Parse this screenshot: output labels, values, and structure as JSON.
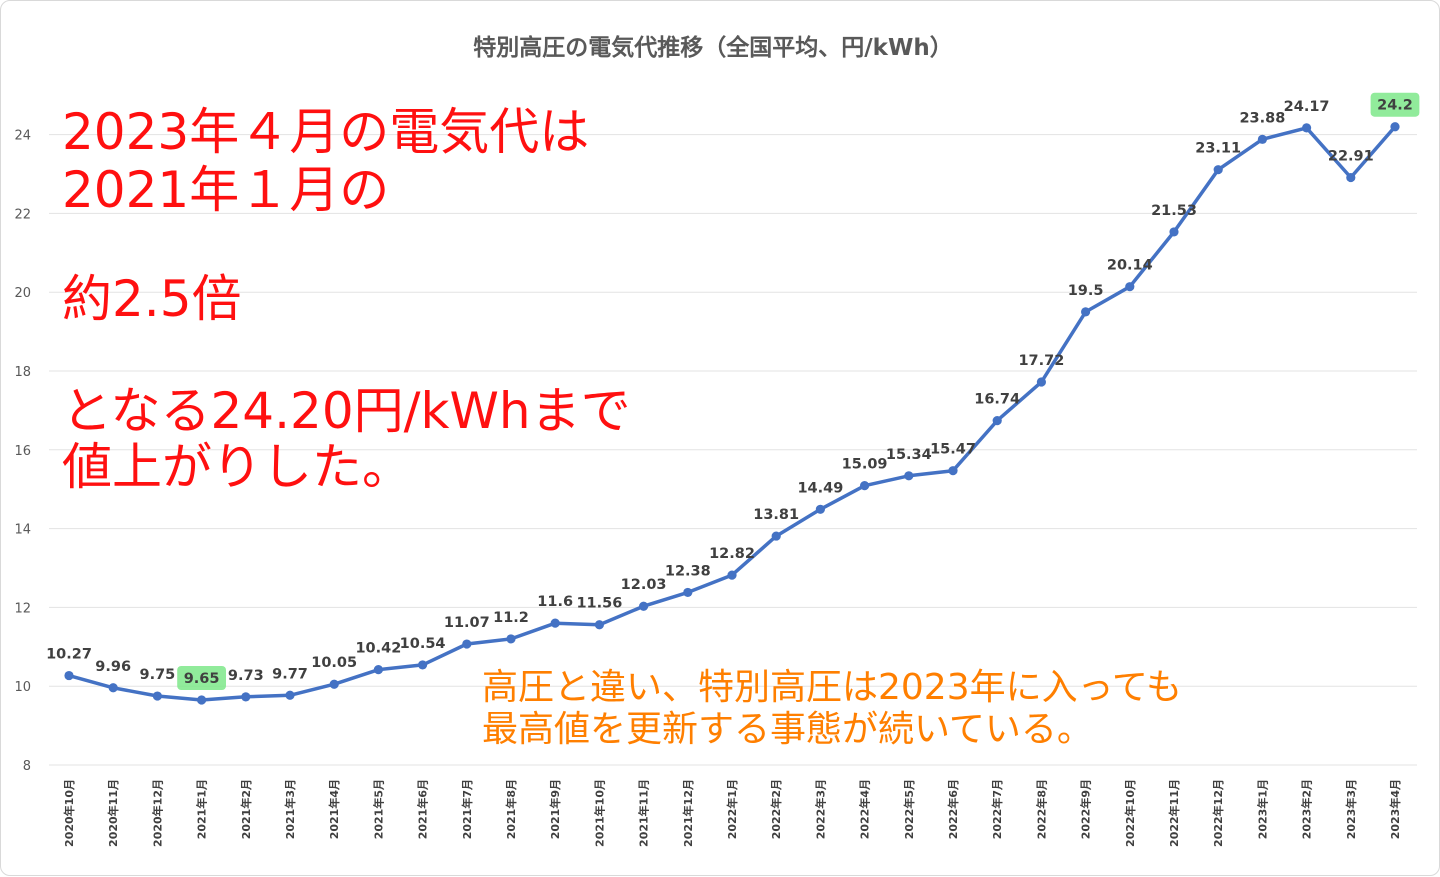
{
  "chart_data": {
    "type": "line",
    "title": "特別高圧の電気代推移（全国平均、円/kWh）",
    "categories": [
      "2020年10月",
      "2020年11月",
      "2020年12月",
      "2021年1月",
      "2021年2月",
      "2021年3月",
      "2021年4月",
      "2021年5月",
      "2021年6月",
      "2021年7月",
      "2021年8月",
      "2021年9月",
      "2021年10月",
      "2021年11月",
      "2021年12月",
      "2022年1月",
      "2022年2月",
      "2022年3月",
      "2022年4月",
      "2022年5月",
      "2022年6月",
      "2022年7月",
      "2022年8月",
      "2022年9月",
      "2022年10月",
      "2022年11月",
      "2022年12月",
      "2023年1月",
      "2023年2月",
      "2023年3月",
      "2023年4月"
    ],
    "values": [
      10.27,
      9.96,
      9.75,
      9.65,
      9.73,
      9.77,
      10.05,
      10.42,
      10.54,
      11.07,
      11.2,
      11.6,
      11.56,
      12.03,
      12.38,
      12.82,
      13.81,
      14.49,
      15.09,
      15.34,
      15.47,
      16.74,
      17.72,
      19.5,
      20.14,
      21.53,
      23.11,
      23.88,
      24.17,
      22.91,
      24.2
    ],
    "data_labels": [
      "10.27",
      "9.96",
      "9.75",
      "9.65",
      "9.73",
      "9.77",
      "10.05",
      "10.42",
      "10.54",
      "11.07",
      "11.2",
      "11.6",
      "11.56",
      "12.03",
      "12.38",
      "12.82",
      "13.81",
      "14.49",
      "15.09",
      "15.34",
      "15.47",
      "16.74",
      "17.72",
      "19.5",
      "20.14",
      "21.53",
      "23.11",
      "23.88",
      "24.17",
      "22.91",
      "24.2"
    ],
    "highlighted_indices": [
      3,
      30
    ],
    "ylim": [
      8,
      25
    ],
    "yticks": [
      "8",
      "10",
      "12",
      "14",
      "16",
      "18",
      "20",
      "22",
      "24"
    ],
    "xlabel": "",
    "ylabel": "",
    "grid": true,
    "legend": "none",
    "colors": {
      "line": "#4472c4",
      "highlight": "#7ee88a",
      "annotation_red": "#ff1010",
      "annotation_orange": "#ff7f00"
    }
  },
  "annotations": {
    "red_line1": "2023年４月の電気代は",
    "red_line2": "2021年１月の",
    "red_line3": "約2.5倍",
    "red_line4": "となる24.20円/kWhまで",
    "red_line5": "値上がりした。",
    "orange_line1": "高圧と違い、特別高圧は2023年に入っても",
    "orange_line2": "最高値を更新する事態が続いている。"
  }
}
